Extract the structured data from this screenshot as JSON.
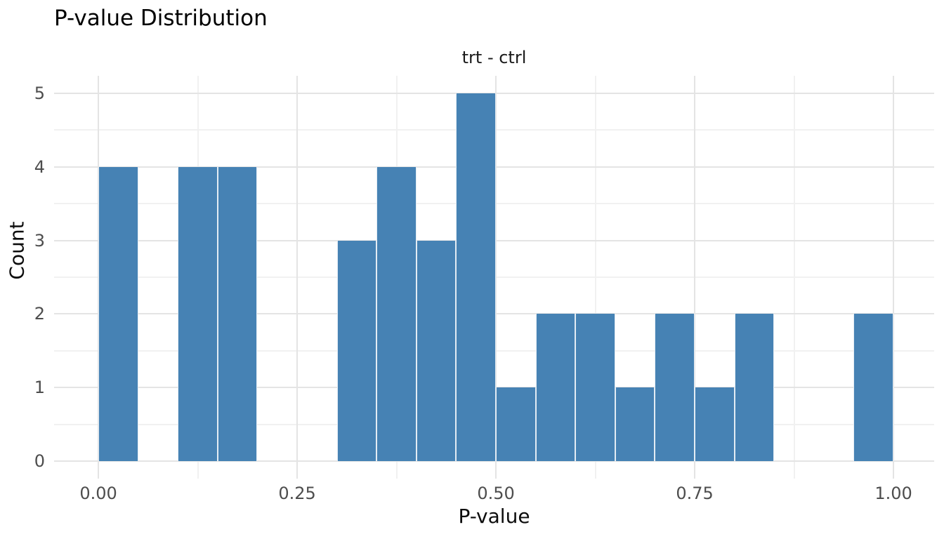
{
  "chart_data": {
    "type": "bar",
    "subtype": "histogram",
    "title": "P-value Distribution",
    "subtitle": "trt - ctrl",
    "xlabel": "P-value",
    "ylabel": "Count",
    "bin_width": 0.05,
    "bins": [
      {
        "start": 0.0,
        "count": 4
      },
      {
        "start": 0.1,
        "count": 4
      },
      {
        "start": 0.15,
        "count": 4
      },
      {
        "start": 0.3,
        "count": 3
      },
      {
        "start": 0.35,
        "count": 4
      },
      {
        "start": 0.4,
        "count": 3
      },
      {
        "start": 0.45,
        "count": 5
      },
      {
        "start": 0.5,
        "count": 1
      },
      {
        "start": 0.55,
        "count": 2
      },
      {
        "start": 0.6,
        "count": 2
      },
      {
        "start": 0.65,
        "count": 1
      },
      {
        "start": 0.7,
        "count": 2
      },
      {
        "start": 0.75,
        "count": 1
      },
      {
        "start": 0.8,
        "count": 2
      },
      {
        "start": 0.95,
        "count": 2
      }
    ],
    "x_ticks": [
      0,
      0.25,
      0.5,
      0.75,
      1
    ],
    "x_tick_labels": [
      "0.00",
      "0.25",
      "0.50",
      "0.75",
      "1.00"
    ],
    "x_minor_ticks": [
      0.125,
      0.375,
      0.625,
      0.875
    ],
    "y_ticks": [
      0,
      1,
      2,
      3,
      4,
      5
    ],
    "y_tick_labels": [
      "0",
      "1",
      "2",
      "3",
      "4",
      "5"
    ],
    "y_minor_ticks": [
      0.5,
      1.5,
      2.5,
      3.5,
      4.5
    ],
    "xlim": [
      -0.0557,
      1.0512
    ],
    "ylim": [
      -0.2385,
      5.2385
    ],
    "grid": true,
    "legend": false,
    "colors": {
      "bar_fill": "#4682B4",
      "bar_edge": "rgba(255,255,255,0.85)",
      "grid_major": "#E4E4E4",
      "grid_minor": "#F1F1F1",
      "tick_label": "#4d4d4d",
      "title": "#000000",
      "axis_title": "#0d0d0d",
      "background": "#FFFFFF"
    }
  }
}
